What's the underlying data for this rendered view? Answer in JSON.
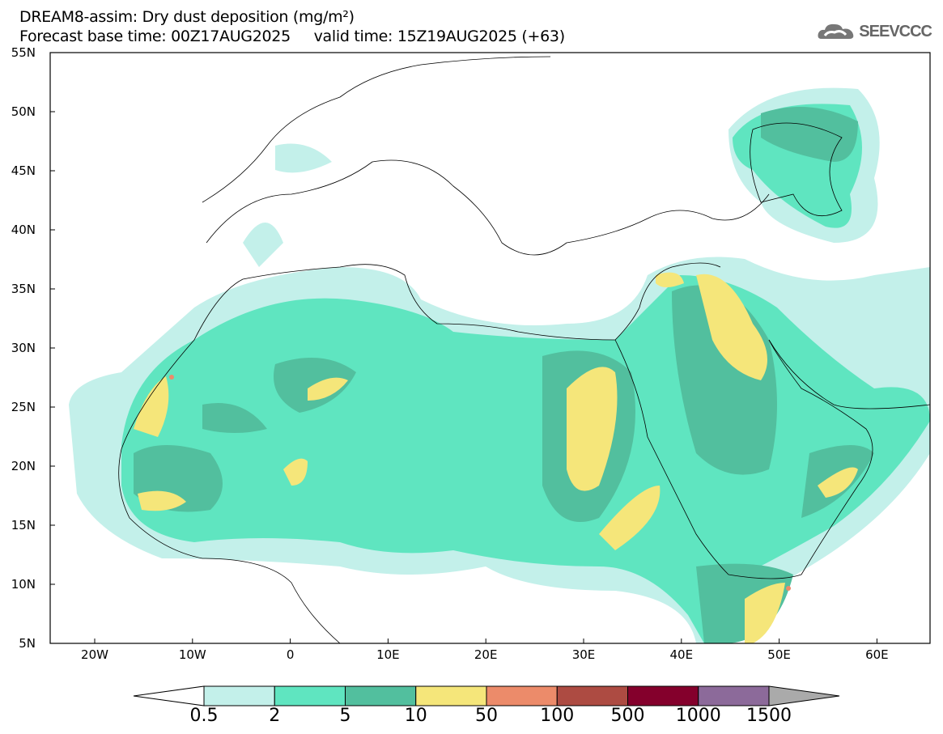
{
  "title": "DREAM8-assim: Dry dust deposition (mg/m²)",
  "subtitle": "Forecast base time: 00Z17AUG2025     valid time: 15Z19AUG2025 (+63)",
  "logo": "SEEVCCC",
  "lat_labels": [
    "55N",
    "50N",
    "45N",
    "40N",
    "35N",
    "30N",
    "25N",
    "20N",
    "15N",
    "10N",
    "5N"
  ],
  "lon_labels": [
    "20W",
    "10W",
    "0",
    "10E",
    "20E",
    "30E",
    "40E",
    "50E",
    "60E"
  ],
  "colorbar": {
    "labels": [
      "0.5",
      "2",
      "5",
      "10",
      "50",
      "100",
      "500",
      "1000",
      "1500"
    ],
    "colors": [
      "#c3f0ea",
      "#5fe5c0",
      "#52bf9e",
      "#f5e67a",
      "#ec8b6a",
      "#ad4b42",
      "#84002c",
      "#8c6a9a",
      "#aaaaaa"
    ]
  }
}
